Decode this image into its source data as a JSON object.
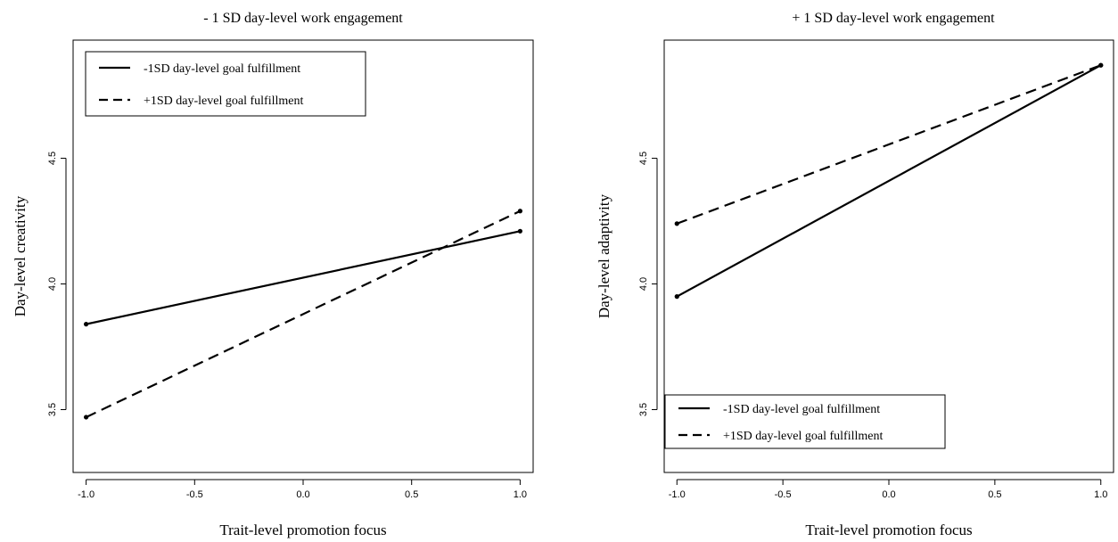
{
  "chart_data": [
    {
      "type": "line",
      "title": "- 1 SD day-level work engagement",
      "xlabel": "Trait-level promotion focus",
      "ylabel": "Day-level creativity",
      "xlim": [
        -1.06,
        1.06
      ],
      "ylim": [
        3.25,
        4.97
      ],
      "xticks": [
        -1.0,
        -0.5,
        0.0,
        0.5,
        1.0
      ],
      "xtick_labels": [
        "-1.0",
        "-0.5",
        "0.0",
        "0.5",
        "1.0"
      ],
      "yticks": [
        3.5,
        4.0,
        4.5
      ],
      "ytick_labels": [
        "3.5",
        "4.0",
        "4.5"
      ],
      "grid": false,
      "legend_position": "top-left",
      "series": [
        {
          "name": "-1SD day-level goal fulfillment",
          "style": "solid",
          "x": [
            -1.0,
            1.0
          ],
          "y": [
            3.84,
            4.21
          ]
        },
        {
          "name": "+1SD day-level goal fulfillment",
          "style": "dashed",
          "x": [
            -1.0,
            1.0
          ],
          "y": [
            3.47,
            4.29
          ]
        }
      ]
    },
    {
      "type": "line",
      "title": "+ 1 SD day-level work engagement",
      "xlabel": "Trait-level promotion focus",
      "ylabel": "Day-level adaptivity",
      "xlim": [
        -1.06,
        1.06
      ],
      "ylim": [
        3.25,
        4.97
      ],
      "xticks": [
        -1.0,
        -0.5,
        0.0,
        0.5,
        1.0
      ],
      "xtick_labels": [
        "-1.0",
        "-0.5",
        "0.0",
        "0.5",
        "1.0"
      ],
      "yticks": [
        3.5,
        4.0,
        4.5
      ],
      "ytick_labels": [
        "3.5",
        "4.0",
        "4.5"
      ],
      "grid": false,
      "legend_position": "bottom-left",
      "series": [
        {
          "name": "-1SD day-level goal fulfillment",
          "style": "solid",
          "x": [
            -1.0,
            1.0
          ],
          "y": [
            3.95,
            4.87
          ]
        },
        {
          "name": "+1SD day-level goal fulfillment",
          "style": "dashed",
          "x": [
            -1.0,
            1.0
          ],
          "y": [
            4.24,
            4.87
          ]
        }
      ]
    }
  ]
}
